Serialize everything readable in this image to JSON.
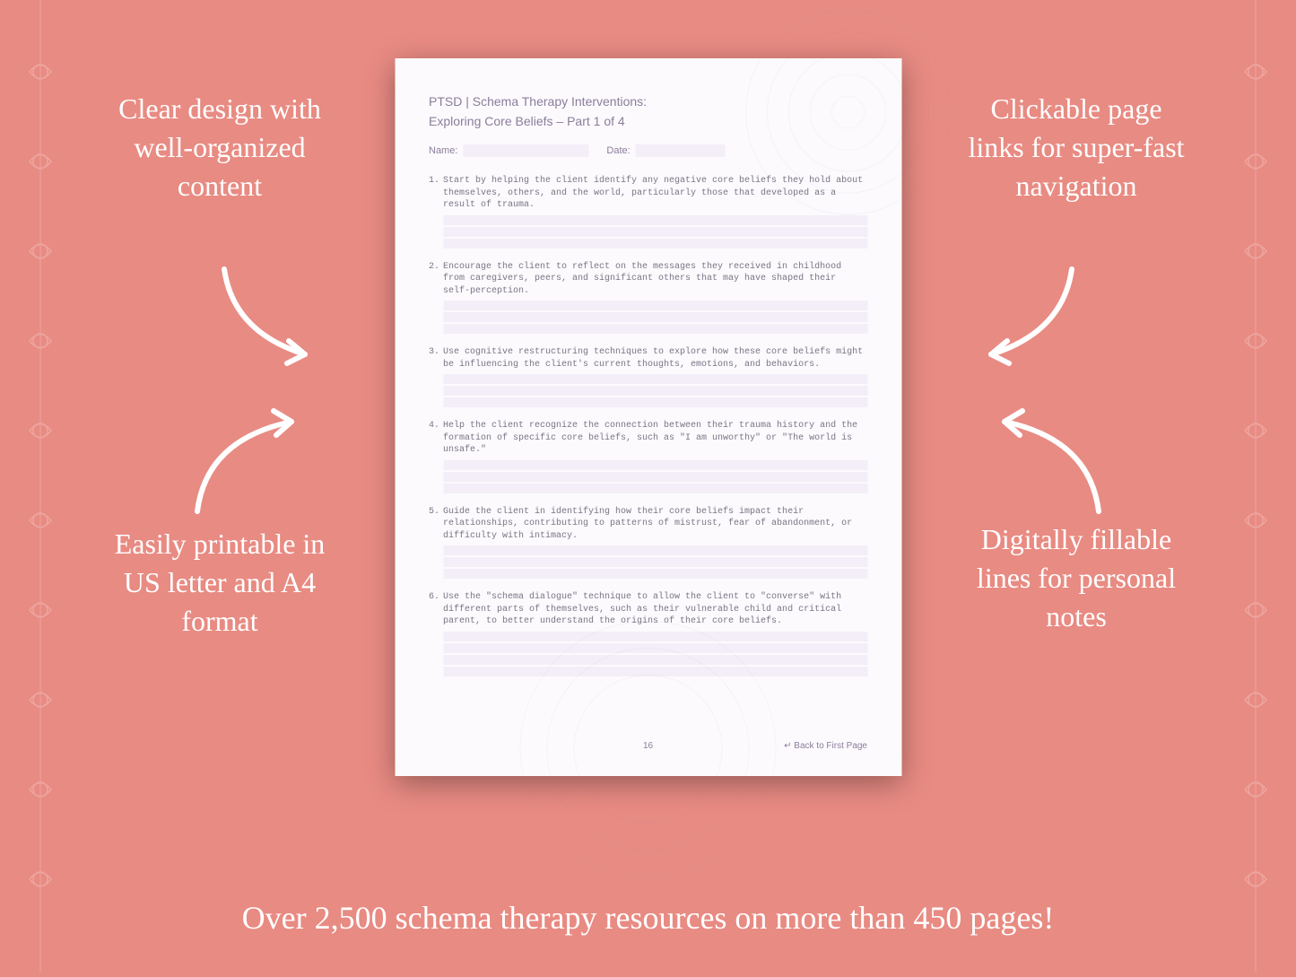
{
  "background_color": "#e88b83",
  "callouts": {
    "top_left": "Clear design with well-organized content",
    "top_right": "Clickable page links for super-fast navigation",
    "bottom_left": "Easily printable in US letter and A4 format",
    "bottom_right": "Digitally fillable lines for personal notes"
  },
  "bottom_banner": "Over 2,500 schema therapy resources on more than 450 pages!",
  "document": {
    "header_line1": "PTSD | Schema Therapy Interventions:",
    "header_line2": "Exploring Core Beliefs  – Part 1 of 4",
    "name_label": "Name:",
    "date_label": "Date:",
    "items": [
      {
        "num": "1.",
        "text": "Start by helping the client identify any negative core beliefs they hold about themselves, others, and the world, particularly those that developed as a result of trauma."
      },
      {
        "num": "2.",
        "text": "Encourage the client to reflect on the messages they received in childhood from caregivers, peers, and significant others that may have shaped their self-perception."
      },
      {
        "num": "3.",
        "text": "Use cognitive restructuring techniques to explore how these core beliefs might be influencing the client's current thoughts, emotions, and behaviors."
      },
      {
        "num": "4.",
        "text": "Help the client recognize the connection between their trauma history and the formation of specific core beliefs, such as \"I am unworthy\" or \"The world is unsafe.\""
      },
      {
        "num": "5.",
        "text": "Guide the client in identifying how their core beliefs impact their relationships, contributing to patterns of mistrust, fear of abandonment, or difficulty with intimacy."
      },
      {
        "num": "6.",
        "text": "Use the \"schema dialogue\" technique to allow the client to \"converse\" with different parts of themselves, such as their vulnerable child and critical parent, to better understand the origins of their core beliefs."
      }
    ],
    "page_number": "16",
    "back_link": "↵ Back to First Page",
    "fill_line_color": "#f3eef7",
    "text_color": "#8b7d9b",
    "body_text_color": "#7a7585",
    "page_bg": "#fcfafd"
  },
  "arrow_color": "#ffffff",
  "callout_fontsize": 32,
  "banner_fontsize": 36
}
